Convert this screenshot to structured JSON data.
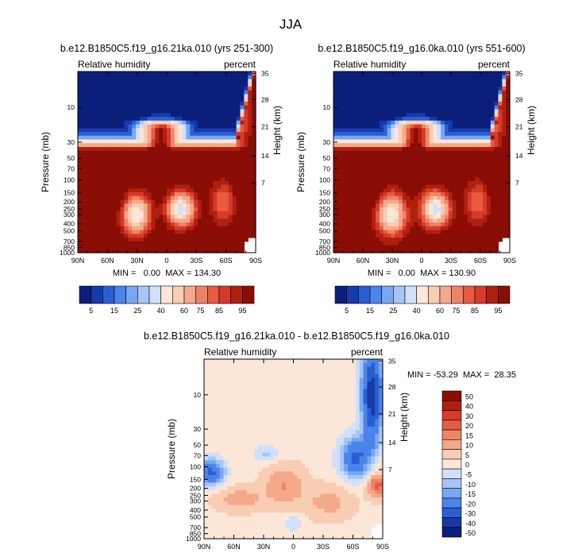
{
  "page": {
    "title": "JJA"
  },
  "colors": {
    "abs_scale": [
      "#0b1f7a",
      "#163aa8",
      "#2a5fd3",
      "#4b84ea",
      "#78a7f2",
      "#a7c6f7",
      "#cfe0fb",
      "#fbe6d8",
      "#f8cdb3",
      "#f4a98b",
      "#ee8466",
      "#e75b43",
      "#d63a28",
      "#b0200f",
      "#8a0d06"
    ],
    "diff_scale": [
      "#0b1f7a",
      "#163aa8",
      "#2a5fd3",
      "#4b84ea",
      "#78a7f2",
      "#a7c6f7",
      "#cfe0fb",
      "#fbe6d8",
      "#f8cdb3",
      "#f4a98b",
      "#ee8466",
      "#e75b43",
      "#d63a28",
      "#b0200f",
      "#8a0d06"
    ]
  },
  "chart_data": [
    {
      "type": "heatmap",
      "title": "b.e12.B1850C5.f19_g16.21ka.010 (yrs 251-300)",
      "left_label": "Relative humidity",
      "right_label": "percent",
      "xlabel": "",
      "ylabel": "Pressure (mb)",
      "ylabel_right": "Height (km)",
      "x_ticks": [
        "90N",
        "60N",
        "30N",
        "0",
        "30S",
        "60S",
        "90S"
      ],
      "y_ticks": [
        "10",
        "30",
        "50",
        "70",
        "100",
        "150",
        "200",
        "250",
        "300",
        "400",
        "500",
        "700",
        "850",
        "1000"
      ],
      "y_ticks_right": [
        "35",
        "28",
        "21",
        "14",
        "7"
      ],
      "stats": "MIN =   0.00  MAX = 134.30",
      "min": 0.0,
      "max": 134.3,
      "colorbar_labels": [
        "5",
        "15",
        "25",
        "40",
        "60",
        "75",
        "85",
        "95"
      ]
    },
    {
      "type": "heatmap",
      "title": "b.e12.B1850C5.f19_g16.0ka.010 (yrs 551-600)",
      "left_label": "Relative humidity",
      "right_label": "percent",
      "xlabel": "",
      "ylabel": "Pressure (mb)",
      "ylabel_right": "Height (km)",
      "x_ticks": [
        "90N",
        "60N",
        "30N",
        "0",
        "30S",
        "60S",
        "90S"
      ],
      "y_ticks": [
        "10",
        "30",
        "50",
        "70",
        "100",
        "150",
        "200",
        "250",
        "300",
        "400",
        "500",
        "700",
        "850",
        "1000"
      ],
      "y_ticks_right": [
        "35",
        "28",
        "21",
        "14",
        "7"
      ],
      "stats": "MIN =   0.00  MAX = 130.90",
      "min": 0.0,
      "max": 130.9,
      "colorbar_labels": [
        "5",
        "15",
        "25",
        "40",
        "60",
        "75",
        "85",
        "95"
      ]
    },
    {
      "type": "heatmap",
      "title": "b.e12.B1850C5.f19_g16.21ka.010 - b.e12.B1850C5.f19_g16.0ka.010",
      "left_label": "Relative humidity",
      "right_label": "percent",
      "xlabel": "",
      "ylabel": "Pressure (mb)",
      "ylabel_right": "Height (km)",
      "x_ticks": [
        "90N",
        "60N",
        "30N",
        "0",
        "30S",
        "60S",
        "90S"
      ],
      "y_ticks": [
        "10",
        "30",
        "50",
        "70",
        "100",
        "150",
        "200",
        "250",
        "300",
        "400",
        "500",
        "700",
        "850",
        "1000"
      ],
      "y_ticks_right": [
        "35",
        "28",
        "21",
        "14",
        "7"
      ],
      "stats": "MIN = -53.29  MAX =  28.35",
      "min": -53.29,
      "max": 28.35,
      "colorbar_labels": [
        "50",
        "40",
        "30",
        "20",
        "15",
        "10",
        "5",
        "0",
        "-5",
        "-10",
        "-15",
        "-20",
        "-30",
        "-40",
        "-50"
      ]
    }
  ]
}
